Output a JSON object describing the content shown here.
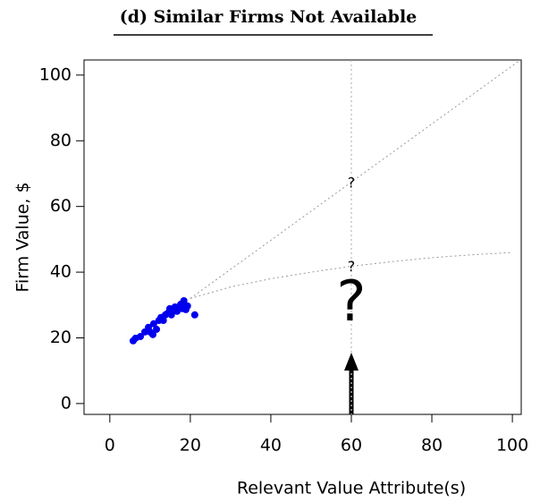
{
  "chart_data": {
    "type": "scatter",
    "title": "(d) Similar Firms Not Available",
    "x_label": "Relevant Value Attribute(s)",
    "y_label": "Firm Value, $",
    "color": "#0000ee",
    "x": [
      5.8,
      6.4,
      7.6,
      8.7,
      9.6,
      10,
      10.7,
      10.9,
      11.6,
      12.2,
      12.7,
      13.3,
      13.8,
      14.4,
      14.9,
      15.3,
      15.8,
      16.2,
      16.7,
      17.1,
      17.6,
      18,
      18.4,
      18.7,
      18.9,
      19.3,
      21.1
    ],
    "values": [
      19.1,
      19.9,
      20.4,
      21.8,
      23.2,
      21.8,
      21,
      24.3,
      22.6,
      25.3,
      26.2,
      25.3,
      27,
      27.5,
      28.9,
      27,
      28.6,
      29.4,
      28.1,
      29.2,
      30.2,
      28.9,
      31.3,
      30,
      28.6,
      29.7,
      27
    ],
    "lines": [
      {
        "x": [
          20,
          102
        ],
        "values": [
          32,
          104.6
        ]
      },
      {
        "x": [
          20,
          30,
          40,
          50,
          60,
          70,
          80,
          90,
          100
        ],
        "values": [
          32,
          35.5,
          38,
          40,
          41.8,
          43.2,
          44.4,
          45.3,
          46
        ]
      }
    ],
    "annotations": [
      {
        "text": "?",
        "x": 60,
        "y": 67
      },
      {
        "text": "?",
        "x": 60,
        "y": 41.5
      },
      {
        "text": "?",
        "x": 60,
        "y": 30
      }
    ],
    "xlim": [
      -6.4,
      102.2
    ],
    "ylim": [
      -3.3,
      104.6
    ],
    "xticks": [
      0,
      20,
      40,
      60,
      80,
      100
    ],
    "yticks": [
      0,
      20,
      40,
      60,
      80,
      100
    ]
  }
}
